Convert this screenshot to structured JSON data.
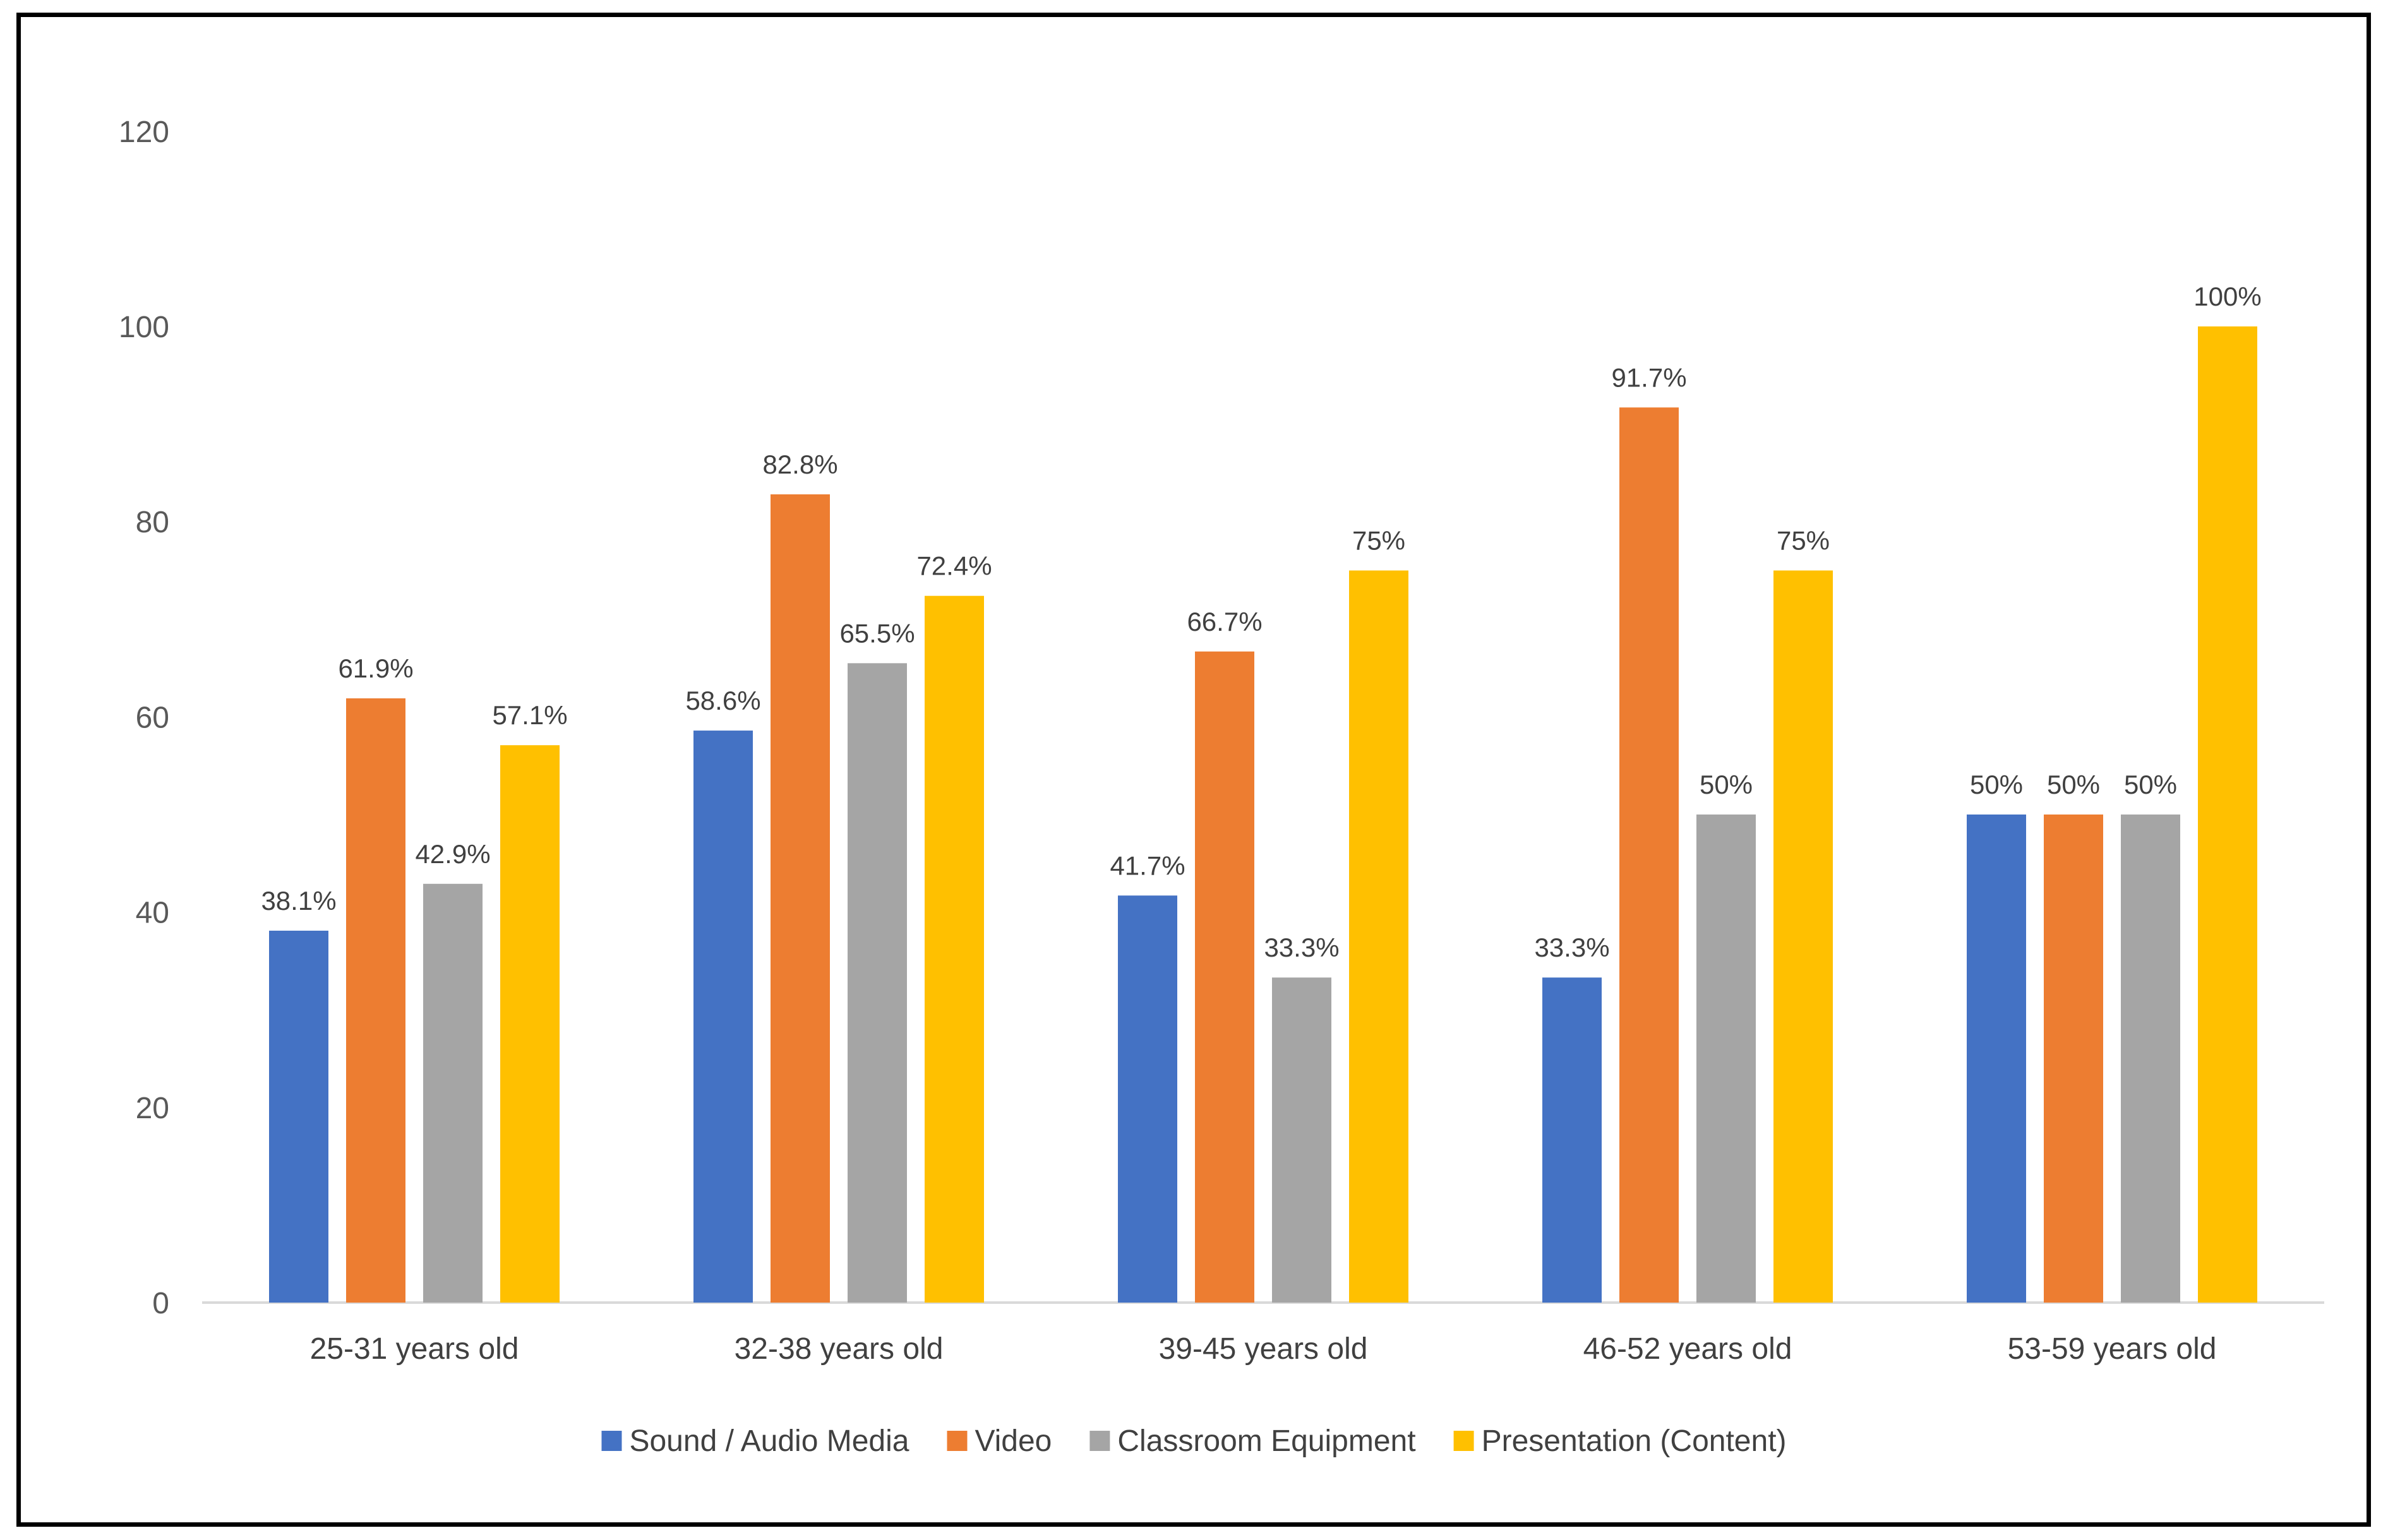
{
  "chart_data": {
    "type": "bar",
    "title": "",
    "xlabel": "",
    "ylabel": "",
    "ylim": [
      0,
      120
    ],
    "yticks": [
      0,
      20,
      40,
      60,
      80,
      100,
      120
    ],
    "grid": false,
    "legend_position": "bottom",
    "categories": [
      "25-31 years old",
      "32-38 years old",
      "39-45 years old",
      "46-52 years old",
      "53-59 years old"
    ],
    "series": [
      {
        "name": "Sound / Audio Media",
        "color": "#4472C4",
        "values": [
          38.1,
          58.6,
          41.7,
          33.3,
          50
        ],
        "labels": [
          "38.1%",
          "58.6%",
          "41.7%",
          "33.3%",
          "50%"
        ]
      },
      {
        "name": "Video",
        "color": "#ED7D31",
        "values": [
          61.9,
          82.8,
          66.7,
          91.7,
          50
        ],
        "labels": [
          "61.9%",
          "82.8%",
          "66.7%",
          "91.7%",
          "50%"
        ]
      },
      {
        "name": "Classroom Equipment",
        "color": "#A5A5A5",
        "values": [
          42.9,
          65.5,
          33.3,
          50,
          50
        ],
        "labels": [
          "42.9%",
          "65.5%",
          "33.3%",
          "50%",
          "50%"
        ]
      },
      {
        "name": "Presentation (Content)",
        "color": "#FFC000",
        "values": [
          57.1,
          72.4,
          75,
          75,
          100
        ],
        "labels": [
          "57.1%",
          "72.4%",
          "75%",
          "75%",
          "100%"
        ]
      }
    ]
  }
}
